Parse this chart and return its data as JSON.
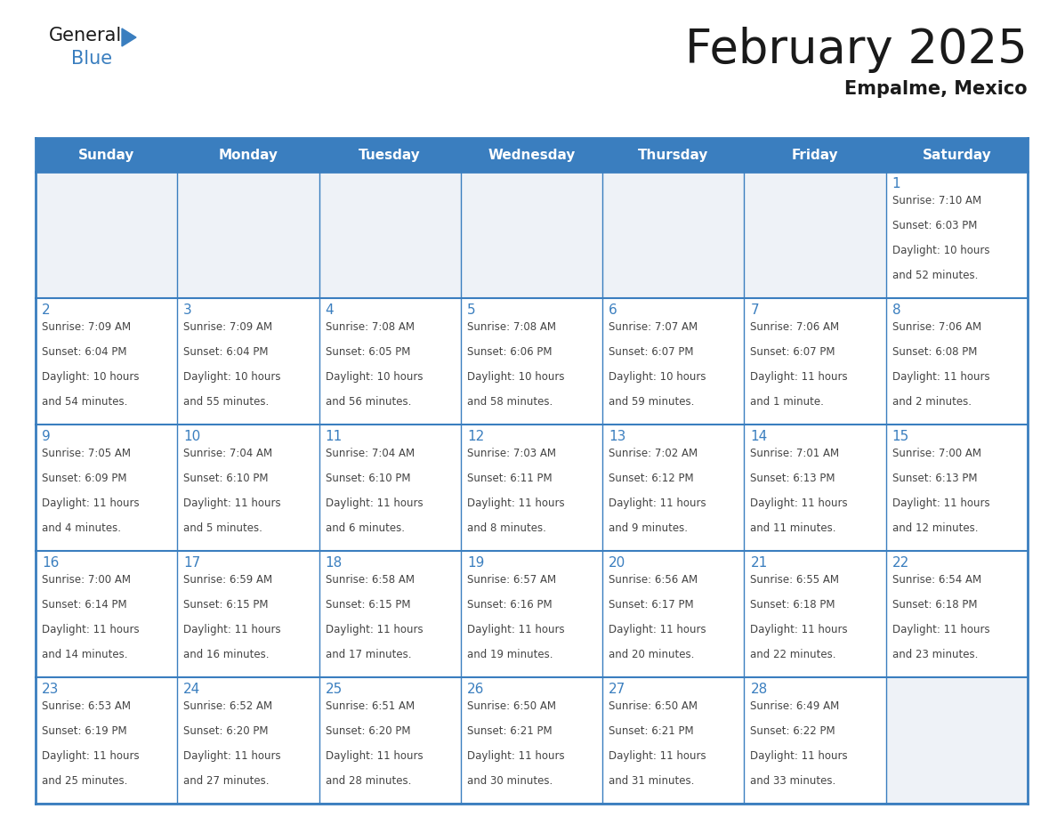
{
  "title": "February 2025",
  "subtitle": "Empalme, Mexico",
  "header_bg_color": "#3a7ebf",
  "header_text_color": "#ffffff",
  "cell_bg_color": "#ffffff",
  "alt_cell_bg_color": "#eef2f7",
  "border_color": "#3a7ebf",
  "day_number_color": "#3a7ebf",
  "text_color": "#444444",
  "days_of_week": [
    "Sunday",
    "Monday",
    "Tuesday",
    "Wednesday",
    "Thursday",
    "Friday",
    "Saturday"
  ],
  "calendar_data": [
    [
      null,
      null,
      null,
      null,
      null,
      null,
      {
        "day": 1,
        "sunrise": "7:10 AM",
        "sunset": "6:03 PM",
        "daylight": "10 hours",
        "daylight2": "and 52 minutes."
      }
    ],
    [
      {
        "day": 2,
        "sunrise": "7:09 AM",
        "sunset": "6:04 PM",
        "daylight": "10 hours",
        "daylight2": "and 54 minutes."
      },
      {
        "day": 3,
        "sunrise": "7:09 AM",
        "sunset": "6:04 PM",
        "daylight": "10 hours",
        "daylight2": "and 55 minutes."
      },
      {
        "day": 4,
        "sunrise": "7:08 AM",
        "sunset": "6:05 PM",
        "daylight": "10 hours",
        "daylight2": "and 56 minutes."
      },
      {
        "day": 5,
        "sunrise": "7:08 AM",
        "sunset": "6:06 PM",
        "daylight": "10 hours",
        "daylight2": "and 58 minutes."
      },
      {
        "day": 6,
        "sunrise": "7:07 AM",
        "sunset": "6:07 PM",
        "daylight": "10 hours",
        "daylight2": "and 59 minutes."
      },
      {
        "day": 7,
        "sunrise": "7:06 AM",
        "sunset": "6:07 PM",
        "daylight": "11 hours",
        "daylight2": "and 1 minute."
      },
      {
        "day": 8,
        "sunrise": "7:06 AM",
        "sunset": "6:08 PM",
        "daylight": "11 hours",
        "daylight2": "and 2 minutes."
      }
    ],
    [
      {
        "day": 9,
        "sunrise": "7:05 AM",
        "sunset": "6:09 PM",
        "daylight": "11 hours",
        "daylight2": "and 4 minutes."
      },
      {
        "day": 10,
        "sunrise": "7:04 AM",
        "sunset": "6:10 PM",
        "daylight": "11 hours",
        "daylight2": "and 5 minutes."
      },
      {
        "day": 11,
        "sunrise": "7:04 AM",
        "sunset": "6:10 PM",
        "daylight": "11 hours",
        "daylight2": "and 6 minutes."
      },
      {
        "day": 12,
        "sunrise": "7:03 AM",
        "sunset": "6:11 PM",
        "daylight": "11 hours",
        "daylight2": "and 8 minutes."
      },
      {
        "day": 13,
        "sunrise": "7:02 AM",
        "sunset": "6:12 PM",
        "daylight": "11 hours",
        "daylight2": "and 9 minutes."
      },
      {
        "day": 14,
        "sunrise": "7:01 AM",
        "sunset": "6:13 PM",
        "daylight": "11 hours",
        "daylight2": "and 11 minutes."
      },
      {
        "day": 15,
        "sunrise": "7:00 AM",
        "sunset": "6:13 PM",
        "daylight": "11 hours",
        "daylight2": "and 12 minutes."
      }
    ],
    [
      {
        "day": 16,
        "sunrise": "7:00 AM",
        "sunset": "6:14 PM",
        "daylight": "11 hours",
        "daylight2": "and 14 minutes."
      },
      {
        "day": 17,
        "sunrise": "6:59 AM",
        "sunset": "6:15 PM",
        "daylight": "11 hours",
        "daylight2": "and 16 minutes."
      },
      {
        "day": 18,
        "sunrise": "6:58 AM",
        "sunset": "6:15 PM",
        "daylight": "11 hours",
        "daylight2": "and 17 minutes."
      },
      {
        "day": 19,
        "sunrise": "6:57 AM",
        "sunset": "6:16 PM",
        "daylight": "11 hours",
        "daylight2": "and 19 minutes."
      },
      {
        "day": 20,
        "sunrise": "6:56 AM",
        "sunset": "6:17 PM",
        "daylight": "11 hours",
        "daylight2": "and 20 minutes."
      },
      {
        "day": 21,
        "sunrise": "6:55 AM",
        "sunset": "6:18 PM",
        "daylight": "11 hours",
        "daylight2": "and 22 minutes."
      },
      {
        "day": 22,
        "sunrise": "6:54 AM",
        "sunset": "6:18 PM",
        "daylight": "11 hours",
        "daylight2": "and 23 minutes."
      }
    ],
    [
      {
        "day": 23,
        "sunrise": "6:53 AM",
        "sunset": "6:19 PM",
        "daylight": "11 hours",
        "daylight2": "and 25 minutes."
      },
      {
        "day": 24,
        "sunrise": "6:52 AM",
        "sunset": "6:20 PM",
        "daylight": "11 hours",
        "daylight2": "and 27 minutes."
      },
      {
        "day": 25,
        "sunrise": "6:51 AM",
        "sunset": "6:20 PM",
        "daylight": "11 hours",
        "daylight2": "and 28 minutes."
      },
      {
        "day": 26,
        "sunrise": "6:50 AM",
        "sunset": "6:21 PM",
        "daylight": "11 hours",
        "daylight2": "and 30 minutes."
      },
      {
        "day": 27,
        "sunrise": "6:50 AM",
        "sunset": "6:21 PM",
        "daylight": "11 hours",
        "daylight2": "and 31 minutes."
      },
      {
        "day": 28,
        "sunrise": "6:49 AM",
        "sunset": "6:22 PM",
        "daylight": "11 hours",
        "daylight2": "and 33 minutes."
      },
      null
    ]
  ],
  "logo_general_color": "#1a1a1a",
  "logo_blue_color": "#3a7ebf",
  "logo_triangle_color": "#3a7ebf"
}
